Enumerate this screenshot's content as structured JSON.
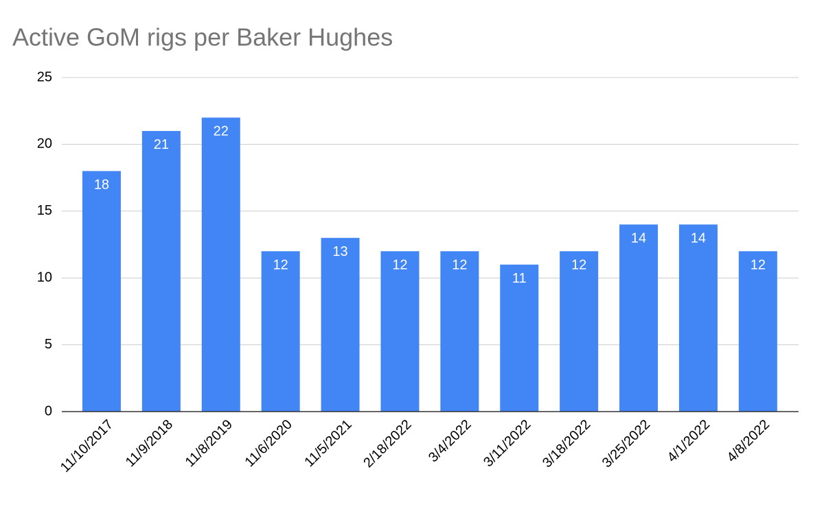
{
  "chart_data": {
    "type": "bar",
    "title": "Active GoM rigs per Baker Hughes",
    "categories": [
      "11/10/2017",
      "11/9/2018",
      "11/8/2019",
      "11/6/2020",
      "11/5/2021",
      "2/18/2022",
      "3/4/2022",
      "3/11/2022",
      "3/18/2022",
      "3/25/2022",
      "4/1/2022",
      "4/8/2022"
    ],
    "values": [
      18,
      21,
      22,
      12,
      13,
      12,
      12,
      11,
      12,
      14,
      14,
      12
    ],
    "color": "#4285f4",
    "ylim": [
      0,
      25
    ],
    "yticks": [
      0,
      5,
      10,
      15,
      20,
      25
    ],
    "grid": true
  }
}
